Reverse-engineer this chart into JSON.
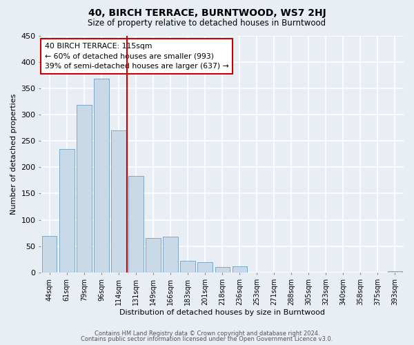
{
  "title": "40, BIRCH TERRACE, BURNTWOOD, WS7 2HJ",
  "subtitle": "Size of property relative to detached houses in Burntwood",
  "xlabel": "Distribution of detached houses by size in Burntwood",
  "ylabel": "Number of detached properties",
  "categories": [
    "44sqm",
    "61sqm",
    "79sqm",
    "96sqm",
    "114sqm",
    "131sqm",
    "149sqm",
    "166sqm",
    "183sqm",
    "201sqm",
    "218sqm",
    "236sqm",
    "253sqm",
    "271sqm",
    "288sqm",
    "305sqm",
    "323sqm",
    "340sqm",
    "358sqm",
    "375sqm",
    "393sqm"
  ],
  "values": [
    70,
    235,
    318,
    368,
    270,
    183,
    65,
    68,
    22,
    19,
    10,
    12,
    0,
    0,
    0,
    0,
    0,
    0,
    0,
    0,
    2
  ],
  "bar_color": "#c9d9e8",
  "bar_edge_color": "#7aaac8",
  "vline_color": "#cc0000",
  "vline_x": 4.5,
  "annotation_title": "40 BIRCH TERRACE: 115sqm",
  "annotation_line1": "← 60% of detached houses are smaller (993)",
  "annotation_line2": "39% of semi-detached houses are larger (637) →",
  "annotation_box_color": "white",
  "annotation_box_edge_color": "#cc0000",
  "ylim": [
    0,
    450
  ],
  "yticks": [
    0,
    50,
    100,
    150,
    200,
    250,
    300,
    350,
    400,
    450
  ],
  "footnote1": "Contains HM Land Registry data © Crown copyright and database right 2024.",
  "footnote2": "Contains public sector information licensed under the Open Government Licence v3.0.",
  "background_color": "#e8eef4",
  "grid_color": "white"
}
